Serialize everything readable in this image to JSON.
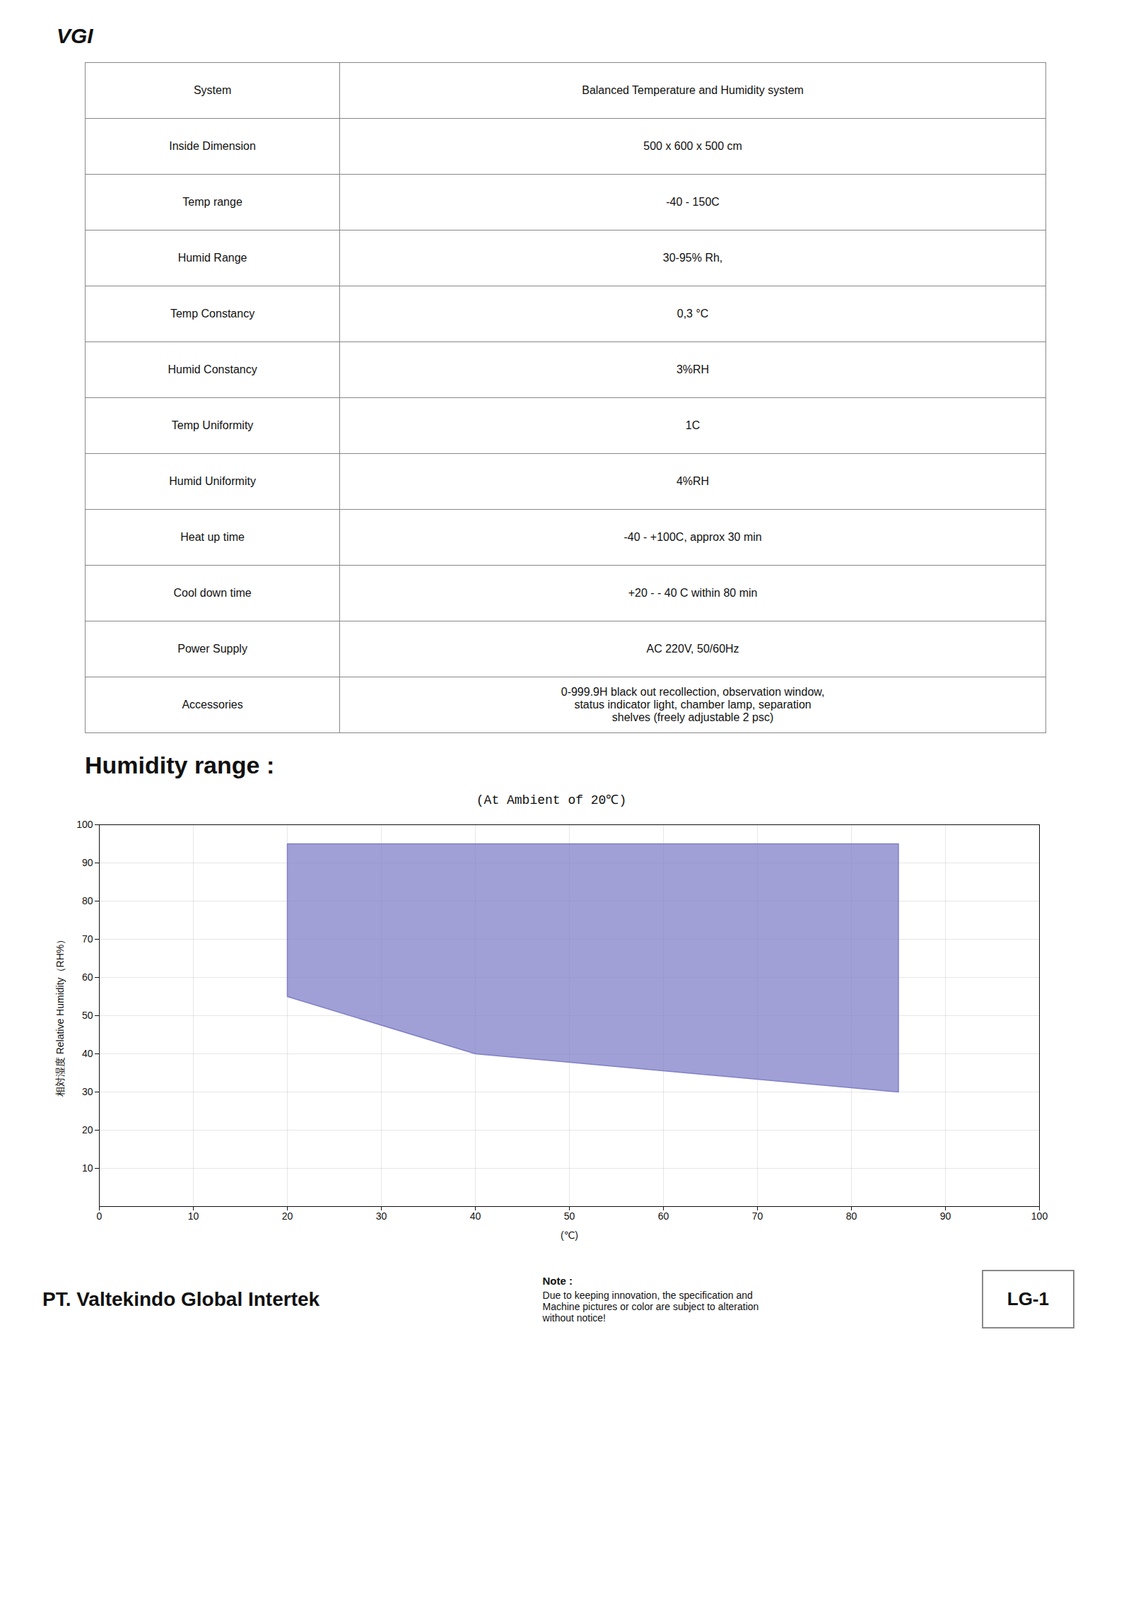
{
  "chart_data": {
    "type": "area",
    "title": "(At Ambient of 20℃)",
    "xlabel": "(℃)",
    "ylabel": "相対湿度 Relative Humidity（RH%）",
    "x": [
      20,
      20,
      40,
      85,
      85
    ],
    "values": [
      95,
      55,
      40,
      30,
      95
    ],
    "color": "#8080c8",
    "xlim": [
      0,
      100
    ],
    "ylim": [
      0,
      100
    ],
    "xticks": [
      0,
      10,
      20,
      30,
      40,
      50,
      60,
      70,
      80,
      90,
      100
    ],
    "yticks": [
      10,
      20,
      30,
      40,
      50,
      60,
      70,
      80,
      90,
      100
    ],
    "grid": true
  },
  "logo": "VGI",
  "table_rows": [
    [
      "System",
      "Balanced Temperature and Humidity system"
    ],
    [
      "Inside Dimension",
      "500 x 600 x 500 cm"
    ],
    [
      "Temp range",
      "-40 - 150C"
    ],
    [
      "Humid Range",
      "30-95% Rh,"
    ],
    [
      "Temp Constancy",
      "0,3 °C"
    ],
    [
      "Humid Constancy",
      "3%RH"
    ],
    [
      "Temp Uniformity",
      "1C"
    ],
    [
      "Humid Uniformity",
      "4%RH"
    ],
    [
      "Heat up time",
      "-40 - +100C, approx 30 min"
    ],
    [
      "Cool down time",
      "+20 - - 40 C within 80 min"
    ],
    [
      "Power Supply",
      "AC 220V, 50/60Hz"
    ],
    [
      "Accessories",
      "0-999.9H black out recollection, observation window,\nstatus indicator light, chamber lamp, separation\nshelves (freely adjustable 2 psc)"
    ]
  ],
  "heading": "Humidity range :",
  "footer_company": "PT. Valtekindo Global Intertek",
  "footer_note_title": "Note :",
  "footer_note_body": "Due to keeping innovation, the specification and\nMachine pictures or color are subject to alteration\nwithout notice!",
  "footer_code": "LG-1"
}
